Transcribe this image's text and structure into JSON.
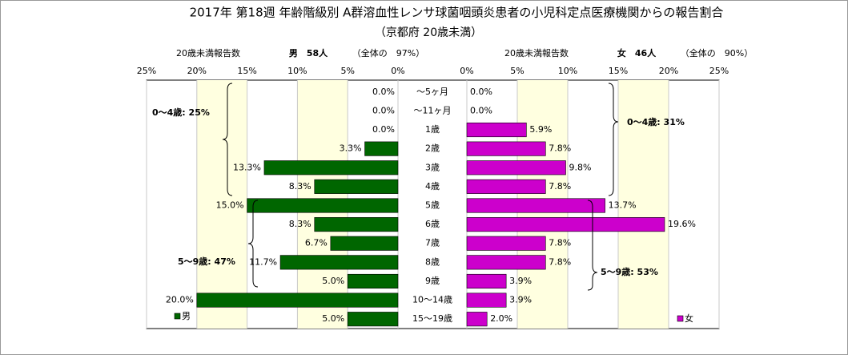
{
  "chart_data": {
    "type": "pyramid",
    "title": "2017年 第18週 年齢階級別 A群溶血性レンサ球菌咽頭炎患者の小児科定点医療機関からの報告割合",
    "subtitle": "（京都府 20歳未満）",
    "categories": [
      "～5ヶ月",
      "～11ヶ月",
      "1歳",
      "2歳",
      "3歳",
      "4歳",
      "5歳",
      "6歳",
      "7歳",
      "8歳",
      "9歳",
      "10～14歳",
      "15～19歳"
    ],
    "xlim": [
      0,
      25
    ],
    "xticks": [
      {
        "value": 0,
        "label": "0%"
      },
      {
        "value": 5,
        "label": "5%"
      },
      {
        "value": 10,
        "label": "10%"
      },
      {
        "value": 15,
        "label": "15%"
      },
      {
        "value": 20,
        "label": "20%"
      },
      {
        "value": 25,
        "label": "25%"
      }
    ],
    "grid": true,
    "series": [
      {
        "name": "男",
        "color": "#006600",
        "side": "left",
        "count_label": "20歳未満報告数",
        "total": "男　58人",
        "share": "（全体の　97%）",
        "values": [
          0,
          0,
          0,
          3.3,
          13.3,
          8.3,
          15.0,
          8.3,
          6.7,
          11.7,
          5.0,
          20.0,
          5.0
        ],
        "value_labels": [
          "0.0%",
          "0.0%",
          "0.0%",
          "3.3%",
          "13.3%",
          "8.3%",
          "15.0%",
          "8.3%",
          "6.7%",
          "11.7%",
          "5.0%",
          "20.0%",
          "5.0%"
        ],
        "annotations": [
          "0～4歳: 25%",
          "5～9歳: 47%"
        ]
      },
      {
        "name": "女",
        "color": "#cc00cc",
        "side": "right",
        "count_label": "20歳未満報告数",
        "total": "女　46人",
        "share": "（全体の　90%）",
        "values": [
          0,
          0,
          5.9,
          7.8,
          9.8,
          7.8,
          13.7,
          19.6,
          7.8,
          7.8,
          3.9,
          3.9,
          2.0
        ],
        "value_labels": [
          "0.0%",
          "0.0%",
          "5.9%",
          "7.8%",
          "9.8%",
          "7.8%",
          "13.7%",
          "19.6%",
          "7.8%",
          "7.8%",
          "3.9%",
          "3.9%",
          "2.0%"
        ],
        "annotations": [
          "0～4歳: 31%",
          "5～9歳: 53%"
        ]
      }
    ]
  }
}
